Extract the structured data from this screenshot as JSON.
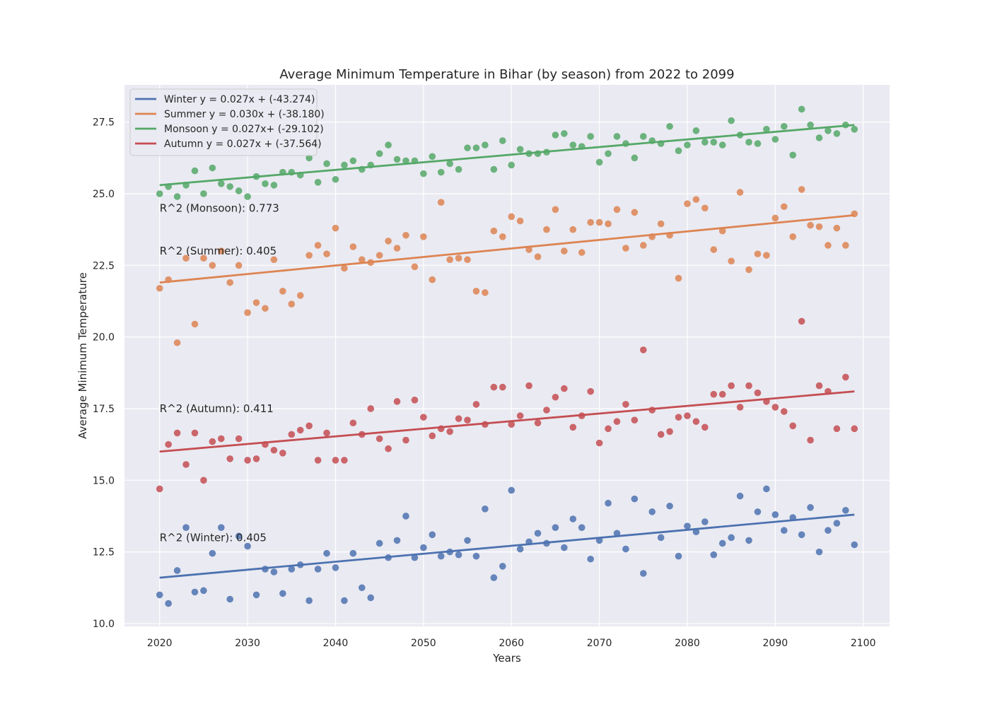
{
  "chart_data": {
    "type": "scatter",
    "title": "Average Minimum Temperature in Bihar (by season) from 2022 to 2099",
    "xlabel": "Years",
    "ylabel": "Average Minimum Temperature",
    "xlim": [
      2016,
      2103
    ],
    "ylim": [
      9.9,
      28.8
    ],
    "xticks": [
      2020,
      2030,
      2040,
      2050,
      2060,
      2070,
      2080,
      2090,
      2100
    ],
    "yticks": [
      10.0,
      12.5,
      15.0,
      17.5,
      20.0,
      22.5,
      25.0,
      27.5
    ],
    "grid": true,
    "legend_position": "top-left",
    "background_color": "#eaeaf2",
    "x_start": 2020,
    "series": [
      {
        "name": "Winter",
        "legend": "Winter y = 0.027x + (-43.274)",
        "color": "#4c72b0",
        "trend": {
          "x": [
            2020,
            2099
          ],
          "y": [
            11.6,
            13.8
          ]
        },
        "r2_label": "R^2 (Winter): 0.405",
        "r2_anchor": [
          2020,
          13.0
        ],
        "values": [
          11.0,
          10.7,
          11.85,
          13.35,
          11.1,
          11.15,
          12.45,
          13.35,
          10.85,
          13.05,
          12.7,
          11.0,
          11.9,
          11.8,
          11.05,
          11.9,
          12.05,
          10.8,
          11.9,
          12.45,
          11.95,
          10.8,
          12.45,
          11.25,
          10.9,
          12.8,
          12.3,
          12.9,
          13.75,
          12.3,
          12.65,
          13.1,
          12.35,
          12.5,
          12.4,
          12.9,
          12.35,
          14.0,
          11.6,
          12.0,
          14.65,
          12.6,
          12.85,
          13.15,
          12.8,
          13.35,
          12.65,
          13.65,
          13.35,
          12.25,
          12.9,
          14.2,
          13.15,
          12.6,
          14.35,
          11.75,
          13.9,
          13.0,
          14.1,
          12.35,
          13.4,
          13.2,
          13.55,
          12.4,
          12.8,
          13.0,
          14.45,
          12.9,
          13.9,
          14.7,
          13.8,
          13.25,
          13.7,
          13.1,
          14.05,
          12.5,
          13.25,
          13.5,
          13.95,
          12.75
        ]
      },
      {
        "name": "Summer",
        "legend": "Summer y = 0.030x + (-38.180)",
        "color": "#dd8452",
        "trend": {
          "x": [
            2020,
            2099
          ],
          "y": [
            21.9,
            24.25
          ]
        },
        "r2_label": "R^2 (Summer): 0.405",
        "r2_anchor": [
          2020,
          23.0
        ],
        "values": [
          21.7,
          22.0,
          19.8,
          22.75,
          20.45,
          22.75,
          22.5,
          23.0,
          21.9,
          22.5,
          20.85,
          21.2,
          21.0,
          22.7,
          21.6,
          21.15,
          21.45,
          22.85,
          23.2,
          22.9,
          23.8,
          22.4,
          23.15,
          22.7,
          22.6,
          22.85,
          23.35,
          23.1,
          23.55,
          22.45,
          23.5,
          22.0,
          24.7,
          22.7,
          22.75,
          22.7,
          21.6,
          21.55,
          23.7,
          23.5,
          24.2,
          24.05,
          23.05,
          22.8,
          23.75,
          24.45,
          23.0,
          23.75,
          22.95,
          24.0,
          24.0,
          23.95,
          24.45,
          23.1,
          24.35,
          23.2,
          23.5,
          23.95,
          23.55,
          22.05,
          24.65,
          24.8,
          24.5,
          23.05,
          23.7,
          22.65,
          25.05,
          22.35,
          22.9,
          22.85,
          24.15,
          24.55,
          23.5,
          25.15,
          23.9,
          23.85,
          23.2,
          23.8,
          23.2,
          24.3
        ]
      },
      {
        "name": "Monsoon",
        "legend": "Monsoon y = 0.027x+ (-29.102)",
        "color": "#55a868",
        "trend": {
          "x": [
            2020,
            2099
          ],
          "y": [
            25.3,
            27.4
          ]
        },
        "r2_label": "R^2 (Monsoon): 0.773",
        "r2_anchor": [
          2020,
          24.5
        ],
        "values": [
          25.0,
          25.25,
          24.9,
          25.3,
          25.8,
          25.0,
          25.9,
          25.35,
          25.25,
          25.1,
          24.9,
          25.6,
          25.35,
          25.3,
          25.75,
          25.75,
          25.65,
          26.25,
          25.4,
          26.05,
          25.5,
          26.0,
          26.15,
          25.85,
          26.0,
          26.4,
          26.7,
          26.2,
          26.15,
          26.15,
          25.7,
          26.3,
          25.75,
          26.05,
          25.85,
          26.6,
          26.6,
          26.7,
          25.85,
          26.85,
          26.0,
          26.55,
          26.4,
          26.4,
          26.45,
          27.05,
          27.1,
          26.7,
          26.65,
          27.0,
          26.1,
          26.4,
          27.0,
          26.75,
          26.25,
          27.0,
          26.85,
          26.75,
          27.35,
          26.5,
          26.7,
          27.2,
          26.8,
          26.8,
          26.7,
          27.55,
          27.05,
          26.8,
          26.75,
          27.25,
          26.9,
          27.35,
          26.35,
          27.95,
          27.4,
          26.95,
          27.2,
          27.1,
          27.4,
          27.25
        ]
      },
      {
        "name": "Autumn",
        "legend": "Autumn y = 0.027x + (-37.564)",
        "color": "#c44e52",
        "trend": {
          "x": [
            2020,
            2099
          ],
          "y": [
            16.0,
            18.1
          ]
        },
        "r2_label": "R^2 (Autumn): 0.411",
        "r2_anchor": [
          2020,
          17.5
        ],
        "values": [
          14.7,
          16.25,
          16.65,
          15.55,
          16.65,
          15.0,
          16.35,
          16.45,
          15.75,
          16.45,
          15.7,
          15.75,
          16.25,
          16.05,
          15.95,
          16.6,
          16.75,
          16.9,
          15.7,
          16.65,
          15.7,
          15.7,
          17.0,
          16.6,
          17.5,
          16.45,
          16.1,
          17.75,
          16.4,
          17.8,
          17.2,
          16.55,
          16.8,
          16.7,
          17.15,
          17.1,
          17.65,
          16.95,
          18.25,
          18.25,
          16.95,
          17.25,
          18.3,
          17.0,
          17.45,
          17.9,
          18.2,
          16.85,
          17.25,
          18.1,
          16.3,
          16.8,
          17.05,
          17.65,
          17.1,
          19.55,
          17.45,
          16.6,
          16.7,
          17.2,
          17.25,
          17.05,
          16.85,
          18.0,
          18.0,
          18.3,
          17.55,
          18.3,
          18.05,
          17.75,
          17.55,
          17.4,
          16.9,
          20.55,
          16.4,
          18.3,
          18.1,
          16.8,
          18.6,
          16.8
        ]
      }
    ]
  }
}
